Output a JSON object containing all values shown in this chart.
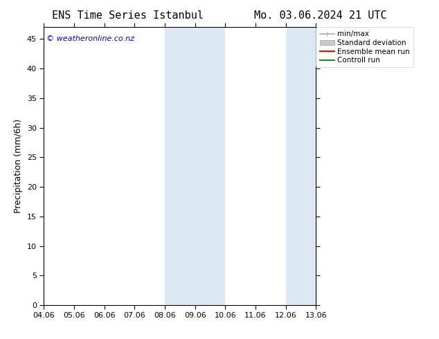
{
  "title_left": "ENS Time Series Istanbul",
  "title_right": "Mo. 03.06.2024 21 UTC",
  "ylabel": "Precipitation (mm/6h)",
  "xlim_start": 0.0,
  "xlim_end": 9.0,
  "ylim": [
    0,
    47
  ],
  "yticks": [
    0,
    5,
    10,
    15,
    20,
    25,
    30,
    35,
    40,
    45
  ],
  "xtick_labels": [
    "04.06",
    "05.06",
    "06.06",
    "07.06",
    "08.06",
    "09.06",
    "10.06",
    "11.06",
    "12.06",
    "13.06"
  ],
  "xtick_positions": [
    0,
    1,
    2,
    3,
    4,
    5,
    6,
    7,
    8,
    9
  ],
  "shaded_regions": [
    {
      "x_start": 4.0,
      "x_end": 5.0,
      "color": "#dce9f5"
    },
    {
      "x_start": 5.0,
      "x_end": 6.0,
      "color": "#dce9f5"
    },
    {
      "x_start": 8.0,
      "x_end": 9.0,
      "color": "#dce9f5"
    }
  ],
  "background_color": "#ffffff",
  "plot_bg_color": "#ffffff",
  "copyright_text": "© weatheronline.co.nz",
  "copyright_color": "#0000cc",
  "legend_items": [
    {
      "label": "min/max",
      "color": "#aaaaaa",
      "style": "errorbar"
    },
    {
      "label": "Standard deviation",
      "color": "#cccccc",
      "style": "patch"
    },
    {
      "label": "Ensemble mean run",
      "color": "#ff0000",
      "style": "line"
    },
    {
      "label": "Controll run",
      "color": "#228822",
      "style": "line"
    }
  ],
  "title_fontsize": 11,
  "ylabel_fontsize": 9,
  "tick_fontsize": 8,
  "legend_fontsize": 7.5
}
